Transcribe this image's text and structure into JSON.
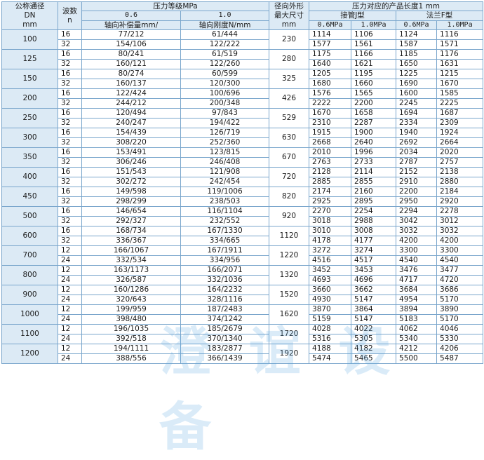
{
  "header": {
    "dn_label": "公称通径",
    "dn_sub": "DN",
    "dn_unit": "mm",
    "wave_label": "波数",
    "wave_sub": "n",
    "pressure_label": "压力等级MPa",
    "p1": "0.6",
    "p2": "1.0",
    "comp_label": "轴向补偿量mm/",
    "stiff_label": "轴向刚度N/mm",
    "od_label": "径向外形",
    "od_sub": "最大尺寸",
    "od_unit": "mm",
    "length_label": "压力对应的产品长度1 mm",
    "j_label": "接管J型",
    "f_label": "法兰F型",
    "j06": "0.6MPa",
    "j10": "1.0MPa",
    "f06": "0.6MPa",
    "f10": "1.0MPa"
  },
  "groups": [
    {
      "dn": "100",
      "od": "230",
      "rows": [
        {
          "n": "16",
          "a": "77/212",
          "b": "61/444",
          "j06": "1114",
          "j10": "1106",
          "f06": "1124",
          "f10": "1116"
        },
        {
          "n": "32",
          "a": "154/106",
          "b": "122/222",
          "j06": "1577",
          "j10": "1561",
          "f06": "1587",
          "f10": "1571"
        }
      ]
    },
    {
      "dn": "125",
      "od": "280",
      "rows": [
        {
          "n": "16",
          "a": "80/241",
          "b": "61/519",
          "j06": "1175",
          "j10": "1166",
          "f06": "1185",
          "f10": "1176"
        },
        {
          "n": "32",
          "a": "160/121",
          "b": "122/260",
          "j06": "1640",
          "j10": "1621",
          "f06": "1650",
          "f10": "1631"
        }
      ]
    },
    {
      "dn": "150",
      "od": "325",
      "rows": [
        {
          "n": "16",
          "a": "80/274",
          "b": "60/599",
          "j06": "1205",
          "j10": "1195",
          "f06": "1225",
          "f10": "1215"
        },
        {
          "n": "32",
          "a": "160/137",
          "b": "120/300",
          "j06": "1680",
          "j10": "1660",
          "f06": "1690",
          "f10": "1670"
        }
      ]
    },
    {
      "dn": "200",
      "od": "426",
      "rows": [
        {
          "n": "16",
          "a": "122/424",
          "b": "100/696",
          "j06": "1576",
          "j10": "1565",
          "f06": "1600",
          "f10": "1585"
        },
        {
          "n": "32",
          "a": "244/212",
          "b": "200/348",
          "j06": "2222",
          "j10": "2200",
          "f06": "2245",
          "f10": "2225"
        }
      ]
    },
    {
      "dn": "250",
      "od": "529",
      "rows": [
        {
          "n": "16",
          "a": "120/494",
          "b": "97/843",
          "j06": "1670",
          "j10": "1658",
          "f06": "1694",
          "f10": "1687"
        },
        {
          "n": "32",
          "a": "240/247",
          "b": "194/422",
          "j06": "2310",
          "j10": "2287",
          "f06": "2334",
          "f10": "2309"
        }
      ]
    },
    {
      "dn": "300",
      "od": "630",
      "rows": [
        {
          "n": "16",
          "a": "154/439",
          "b": "126/719",
          "j06": "1915",
          "j10": "1900",
          "f06": "1940",
          "f10": "1924"
        },
        {
          "n": "32",
          "a": "308/220",
          "b": "252/360",
          "j06": "2668",
          "j10": "2640",
          "f06": "2692",
          "f10": "2664"
        }
      ]
    },
    {
      "dn": "350",
      "od": "670",
      "rows": [
        {
          "n": "16",
          "a": "153/491",
          "b": "123/815",
          "j06": "2010",
          "j10": "1996",
          "f06": "2034",
          "f10": "2020"
        },
        {
          "n": "32",
          "a": "306/246",
          "b": "246/408",
          "j06": "2763",
          "j10": "2733",
          "f06": "2787",
          "f10": "2757"
        }
      ]
    },
    {
      "dn": "400",
      "od": "720",
      "rows": [
        {
          "n": "16",
          "a": "151/543",
          "b": "121/908",
          "j06": "2128",
          "j10": "2114",
          "f06": "2152",
          "f10": "2138"
        },
        {
          "n": "32",
          "a": "302/272",
          "b": "242/454",
          "j06": "2885",
          "j10": "2855",
          "f06": "2910",
          "f10": "2880"
        }
      ]
    },
    {
      "dn": "450",
      "od": "820",
      "rows": [
        {
          "n": "16",
          "a": "149/598",
          "b": "119/1006",
          "j06": "2174",
          "j10": "2160",
          "f06": "2200",
          "f10": "2184"
        },
        {
          "n": "32",
          "a": "298/299",
          "b": "238/503",
          "j06": "2925",
          "j10": "2895",
          "f06": "2950",
          "f10": "2920"
        }
      ]
    },
    {
      "dn": "500",
      "od": "920",
      "rows": [
        {
          "n": "16",
          "a": "146/654",
          "b": "116/1104",
          "j06": "2270",
          "j10": "2254",
          "f06": "2294",
          "f10": "2278"
        },
        {
          "n": "32",
          "a": "292/327",
          "b": "232/552",
          "j06": "3018",
          "j10": "2988",
          "f06": "3042",
          "f10": "3012"
        }
      ]
    },
    {
      "dn": "600",
      "od": "1120",
      "rows": [
        {
          "n": "16",
          "a": "168/734",
          "b": "167/1330",
          "j06": "3010",
          "j10": "3008",
          "f06": "3032",
          "f10": "3032"
        },
        {
          "n": "32",
          "a": "336/367",
          "b": "334/665",
          "j06": "4178",
          "j10": "4177",
          "f06": "4200",
          "f10": "4200"
        }
      ]
    },
    {
      "dn": "700",
      "od": "1220",
      "rows": [
        {
          "n": "12",
          "a": "166/1067",
          "b": "167/1911",
          "j06": "3272",
          "j10": "3274",
          "f06": "3300",
          "f10": "3300"
        },
        {
          "n": "24",
          "a": "332/534",
          "b": "334/956",
          "j06": "4516",
          "j10": "4517",
          "f06": "4540",
          "f10": "4540"
        }
      ]
    },
    {
      "dn": "800",
      "od": "1320",
      "rows": [
        {
          "n": "12",
          "a": "163/1173",
          "b": "166/2071",
          "j06": "3452",
          "j10": "3453",
          "f06": "3476",
          "f10": "3477"
        },
        {
          "n": "24",
          "a": "326/587",
          "b": "332/1036",
          "j06": "4693",
          "j10": "4696",
          "f06": "4717",
          "f10": "4720"
        }
      ]
    },
    {
      "dn": "900",
      "od": "1520",
      "rows": [
        {
          "n": "12",
          "a": "160/1286",
          "b": "164/2232",
          "j06": "3660",
          "j10": "3662",
          "f06": "3684",
          "f10": "3686"
        },
        {
          "n": "24",
          "a": "320/643",
          "b": "328/1116",
          "j06": "4930",
          "j10": "5147",
          "f06": "4954",
          "f10": "5170"
        }
      ]
    },
    {
      "dn": "1000",
      "od": "1620",
      "rows": [
        {
          "n": "12",
          "a": "199/959",
          "b": "187/2483",
          "j06": "3870",
          "j10": "3864",
          "f06": "3894",
          "f10": "3890"
        },
        {
          "n": "24",
          "a": "398/480",
          "b": "374/1242",
          "j06": "5159",
          "j10": "5147",
          "f06": "5183",
          "f10": "5170"
        }
      ]
    },
    {
      "dn": "1100",
      "od": "1720",
      "rows": [
        {
          "n": "12",
          "a": "196/1035",
          "b": "185/2679",
          "j06": "4028",
          "j10": "4022",
          "f06": "4062",
          "f10": "4046"
        },
        {
          "n": "24",
          "a": "392/518",
          "b": "370/1340",
          "j06": "5316",
          "j10": "5305",
          "f06": "5340",
          "f10": "5330"
        }
      ]
    },
    {
      "dn": "1200",
      "od": "1920",
      "rows": [
        {
          "n": "12",
          "a": "194/1111",
          "b": "183/2877",
          "j06": "4188",
          "j10": "4182",
          "f06": "4212",
          "f10": "4206"
        },
        {
          "n": "24",
          "a": "388/556",
          "b": "366/1439",
          "j06": "5474",
          "j10": "5465",
          "f06": "5500",
          "f10": "5487"
        }
      ]
    }
  ],
  "watermark": "澄 谊 设 备"
}
